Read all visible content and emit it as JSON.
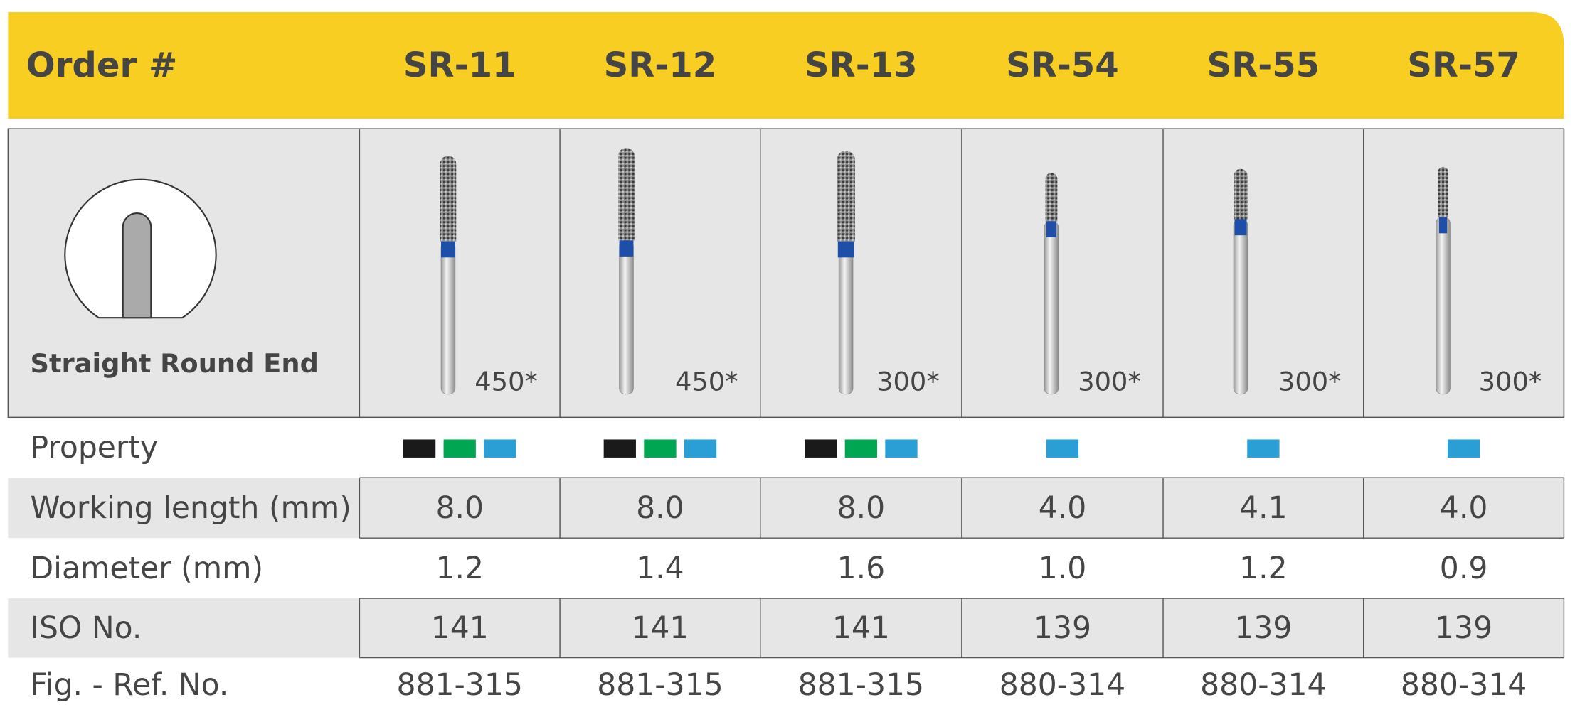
{
  "header": {
    "label": "Order #",
    "codes": [
      "SR-11",
      "SR-12",
      "SR-13",
      "SR-54",
      "SR-55",
      "SR-57"
    ]
  },
  "image_row": {
    "shape_label": "Straight Round End",
    "speeds": [
      "450*",
      "450*",
      "300*",
      "300*",
      "300*",
      "300*"
    ]
  },
  "rows": [
    {
      "label": "Property",
      "colors": [
        [
          "#1a1a1a",
          "#00a651",
          "#2a9fd6"
        ],
        [
          "#1a1a1a",
          "#00a651",
          "#2a9fd6"
        ],
        [
          "#1a1a1a",
          "#00a651",
          "#2a9fd6"
        ],
        [
          "#2a9fd6"
        ],
        [
          "#2a9fd6"
        ],
        [
          "#2a9fd6"
        ]
      ]
    },
    {
      "label": "Working length (mm)",
      "values": [
        "8.0",
        "8.0",
        "8.0",
        "4.0",
        "4.1",
        "4.0"
      ]
    },
    {
      "label": "Diameter (mm)",
      "values": [
        "1.2",
        "1.4",
        "1.6",
        "1.0",
        "1.2",
        "0.9"
      ]
    },
    {
      "label": "ISO No.",
      "values": [
        "141",
        "141",
        "141",
        "139",
        "139",
        "139"
      ]
    },
    {
      "label": "Fig. - Ref. No.",
      "values": [
        "881-315",
        "881-315",
        "881-315",
        "880-314",
        "880-314",
        "880-314"
      ]
    }
  ]
}
